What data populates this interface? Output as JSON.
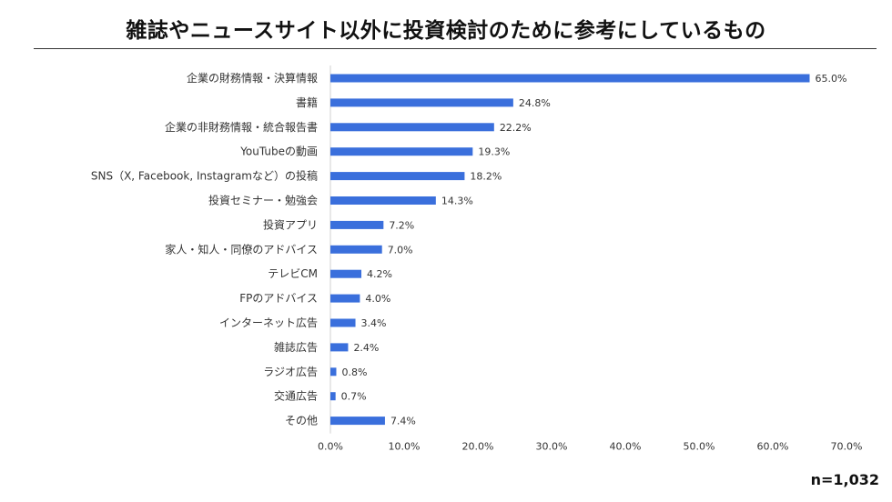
{
  "title": "雑誌やニュースサイト以外に投資検討のために参考にしているもの",
  "sample_size": "n=1,032",
  "colors": {
    "bar": "#3a6fdc",
    "axis": "#d0d0d0",
    "grid": "#e6e6e6",
    "text": "#333333"
  },
  "chart_data": {
    "type": "bar",
    "orientation": "horizontal",
    "title": "雑誌やニュースサイト以外に投資検討のために参考にしているもの",
    "xlabel": "",
    "ylabel": "",
    "xlim": [
      0,
      70
    ],
    "grid": false,
    "legend": "none",
    "x_ticks": [
      "0.0%",
      "10.0%",
      "20.0%",
      "30.0%",
      "40.0%",
      "50.0%",
      "60.0%",
      "70.0%"
    ],
    "categories": [
      "企業の財務情報・決算情報",
      "書籍",
      "企業の非財務情報・統合報告書",
      "YouTubeの動画",
      "SNS（X, Facebook, Instagramなど）の投稿",
      "投資セミナー・勉強会",
      "投資アプリ",
      "家人・知人・同僚のアドバイス",
      "テレビCM",
      "FPのアドバイス",
      "インターネット広告",
      "雑誌広告",
      "ラジオ広告",
      "交通広告",
      "その他"
    ],
    "values": [
      65.0,
      24.8,
      22.2,
      19.3,
      18.2,
      14.3,
      7.2,
      7.0,
      4.2,
      4.0,
      3.4,
      2.4,
      0.8,
      0.7,
      7.4
    ],
    "data_labels": [
      "65.0%",
      "24.8%",
      "22.2%",
      "19.3%",
      "18.2%",
      "14.3%",
      "7.2%",
      "7.0%",
      "4.2%",
      "4.0%",
      "3.4%",
      "2.4%",
      "0.8%",
      "0.7%",
      "7.4%"
    ]
  }
}
